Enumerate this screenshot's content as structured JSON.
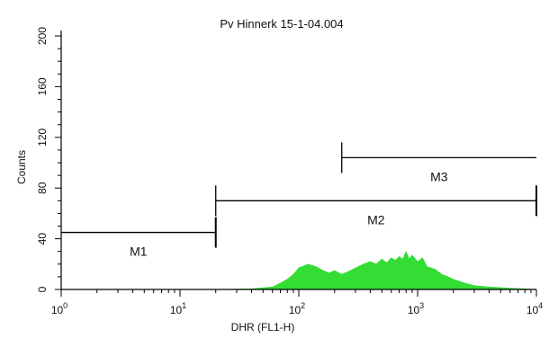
{
  "chart_data": {
    "type": "area",
    "title": "Pv Hinnerk 15-1-04.004",
    "xlabel": "DHR (FL1-H)",
    "ylabel": "Counts",
    "x_scale": "log",
    "xlim": [
      1,
      10000
    ],
    "ylim": [
      0,
      200
    ],
    "x_ticks": [
      {
        "base": "10",
        "exp": "0"
      },
      {
        "base": "10",
        "exp": "1"
      },
      {
        "base": "10",
        "exp": "2"
      },
      {
        "base": "10",
        "exp": "3"
      },
      {
        "base": "10",
        "exp": "4"
      }
    ],
    "y_ticks": [
      "0",
      "40",
      "80",
      "120",
      "160",
      "200"
    ],
    "fill_color": "#33dd33",
    "series": [
      {
        "x": [
          1,
          20,
          40,
          60,
          70,
          80,
          90,
          100,
          120,
          140,
          160,
          180,
          200,
          230,
          260,
          300,
          350,
          400,
          450,
          500,
          550,
          600,
          650,
          700,
          750,
          800,
          850,
          900,
          1000,
          1100,
          1200,
          1400,
          1600,
          1800,
          2000,
          2500,
          3000,
          4000,
          6000,
          8000,
          10000
        ],
        "y": [
          0,
          0,
          0.5,
          2,
          5,
          8,
          12,
          17,
          20,
          18,
          15,
          13,
          15,
          12,
          14,
          17,
          20,
          22,
          20,
          24,
          21,
          25,
          23,
          26,
          24,
          30,
          24,
          27,
          22,
          25,
          18,
          16,
          12,
          10,
          8,
          5,
          3,
          2,
          1,
          0.5,
          0
        ]
      }
    ],
    "markers": [
      {
        "label": "M1",
        "x_start": 1,
        "x_end": 20,
        "y": 45
      },
      {
        "label": "M2",
        "x_start": 20,
        "x_end": 10000,
        "y": 70
      },
      {
        "label": "M3",
        "x_start": 230,
        "x_end": 10000,
        "y": 104
      }
    ]
  }
}
